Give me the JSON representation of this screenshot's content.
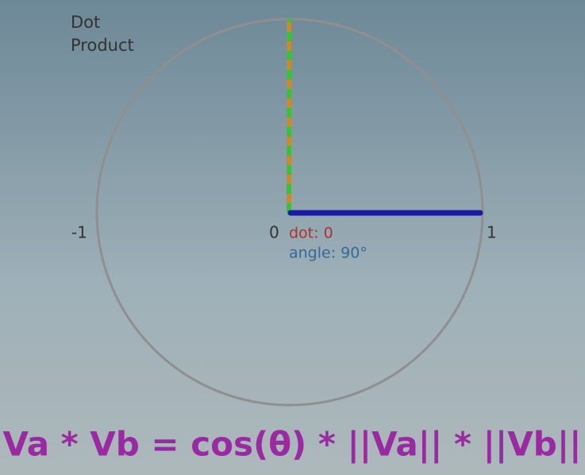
{
  "title_lines": [
    "Dot",
    "Product"
  ],
  "axis_labels": {
    "min": "-1",
    "center": "0",
    "max": "1"
  },
  "readout": {
    "dot": "dot: 0",
    "angle": "angle: 90°"
  },
  "formula": "Va * Vb = cos(θ) * ||Va|| * ||Vb||"
}
